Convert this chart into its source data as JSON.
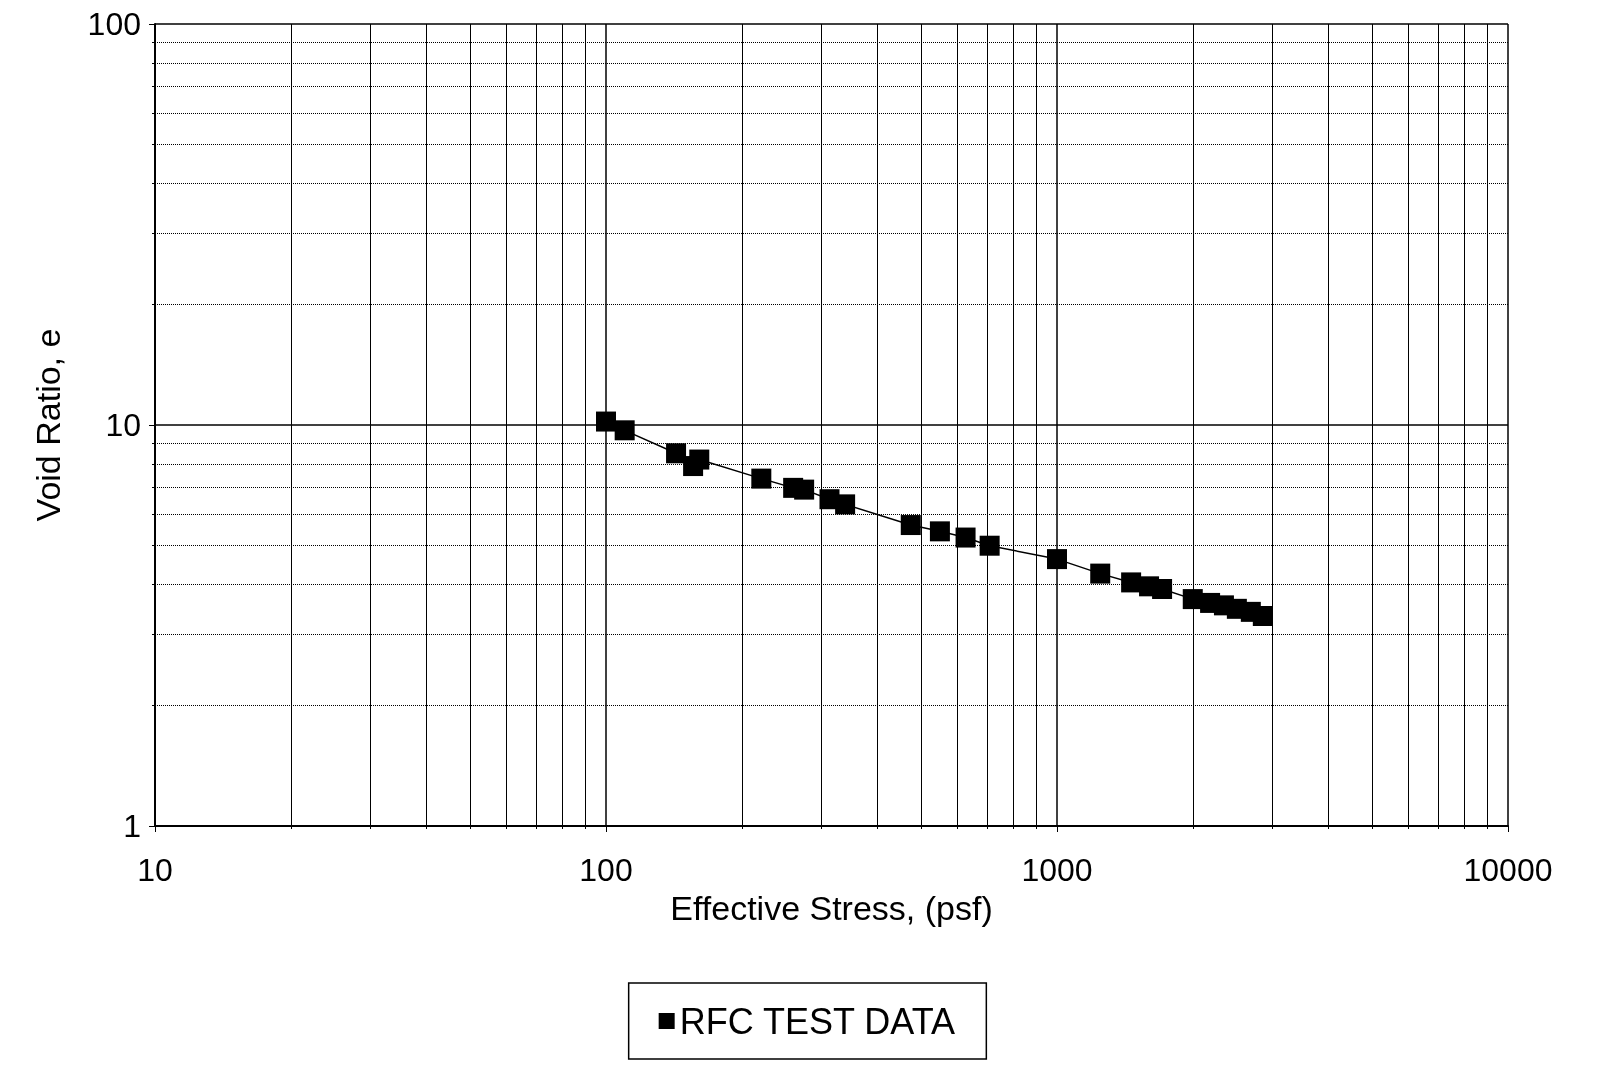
{
  "chart_data": {
    "type": "line",
    "xlabel": "Effective Stress, (psf)",
    "ylabel": "Void Ratio, e",
    "x": [
      100,
      110,
      143,
      156,
      161,
      221,
      260,
      275,
      313,
      339,
      474,
      550,
      627,
      709,
      1000,
      1247,
      1460,
      1600,
      1710,
      2000,
      2185,
      2345,
      2505,
      2690,
      2860
    ],
    "series": [
      {
        "name": "RFC TEST DATA",
        "color": "#000000",
        "values": [
          10.2,
          9.7,
          8.5,
          7.9,
          8.2,
          7.35,
          6.97,
          6.9,
          6.53,
          6.34,
          5.63,
          5.43,
          5.24,
          5.0,
          4.63,
          4.26,
          4.05,
          3.96,
          3.9,
          3.68,
          3.6,
          3.55,
          3.48,
          3.42,
          3.34
        ]
      }
    ],
    "xlim": [
      10,
      10000
    ],
    "ylim": [
      1,
      100
    ],
    "xticks": [
      10,
      100,
      1000,
      10000
    ],
    "yticks": [
      1,
      10,
      100
    ],
    "log": "xy",
    "grid": true,
    "legend": "bottom",
    "marker": "square",
    "line_style": "solid"
  }
}
